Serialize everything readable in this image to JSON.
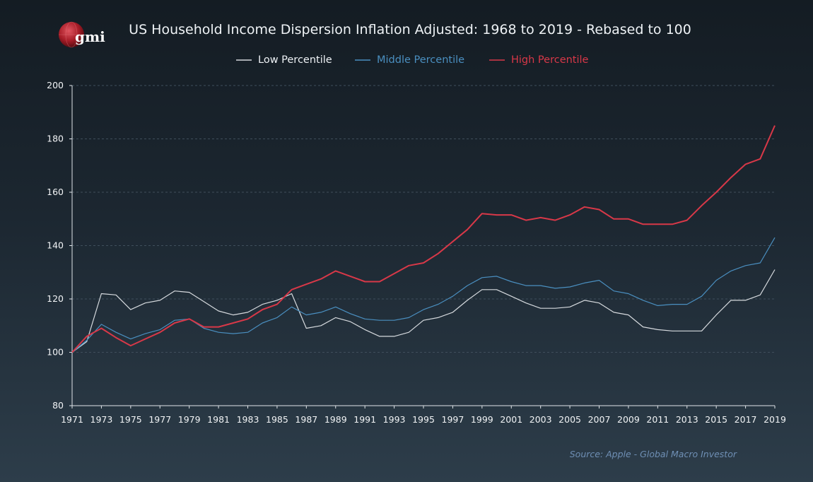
{
  "logo": {
    "text": "gmi"
  },
  "source_text": "Source: Apple - Global Macro Investor",
  "colors": {
    "low": "#d6dade",
    "middle": "#4a8fc0",
    "high": "#d83848"
  },
  "chart_data": {
    "type": "line",
    "title": "US Household Income Dispersion Inflation Adjusted: 1968 to 2019 - Rebased to 100",
    "xlabel": "",
    "ylabel": "",
    "ylim": [
      80,
      200
    ],
    "yticks": [
      80,
      100,
      120,
      140,
      160,
      180,
      200
    ],
    "xlim": [
      1971,
      2019
    ],
    "xticks": [
      1971,
      1973,
      1975,
      1977,
      1979,
      1981,
      1983,
      1985,
      1987,
      1989,
      1991,
      1993,
      1995,
      1997,
      1999,
      2001,
      2003,
      2005,
      2007,
      2009,
      2011,
      2013,
      2015,
      2017,
      2019
    ],
    "grid": true,
    "legend_position": "top",
    "x": [
      1971,
      1972,
      1973,
      1974,
      1975,
      1976,
      1977,
      1978,
      1979,
      1980,
      1981,
      1982,
      1983,
      1984,
      1985,
      1986,
      1987,
      1988,
      1989,
      1990,
      1991,
      1992,
      1993,
      1994,
      1995,
      1996,
      1997,
      1998,
      1999,
      2000,
      2001,
      2002,
      2003,
      2004,
      2005,
      2006,
      2007,
      2008,
      2009,
      2010,
      2011,
      2012,
      2013,
      2014,
      2015,
      2016,
      2017,
      2018,
      2019
    ],
    "series": [
      {
        "name": "Low Percentile",
        "color": "#d6dade",
        "values": [
          100,
          104,
          122,
          121.5,
          116,
          118.5,
          119.5,
          123,
          122.5,
          119,
          115.5,
          114,
          115,
          118,
          119.5,
          122,
          109,
          110,
          113,
          111.5,
          108.5,
          106,
          106,
          107.5,
          112,
          113,
          115,
          119.5,
          123.5,
          123.5,
          121,
          118.5,
          116.5,
          116.5,
          117,
          119.5,
          118.5,
          115,
          114,
          109.5,
          108.5,
          108,
          108,
          108,
          114,
          119.5,
          119.5,
          121.5,
          131
        ]
      },
      {
        "name": "Middle Percentile",
        "color": "#4a8fc0",
        "values": [
          100,
          104.5,
          110.5,
          107.5,
          105,
          107,
          108.5,
          112,
          112.5,
          109,
          107.5,
          107,
          107.5,
          111,
          113,
          117,
          114,
          115,
          117,
          114.5,
          112.5,
          112,
          112,
          113,
          116,
          118,
          121,
          125,
          128,
          128.5,
          126.5,
          125,
          125,
          124,
          124.5,
          126,
          127,
          123,
          122,
          119.5,
          117.5,
          118,
          118,
          121,
          127,
          130.5,
          132.5,
          133.5,
          143
        ]
      },
      {
        "name": "High Percentile",
        "color": "#d83848",
        "values": [
          100,
          106,
          109,
          105.5,
          102.5,
          105,
          107.5,
          111,
          112.5,
          109.5,
          109.5,
          111,
          112.5,
          116,
          118,
          123.5,
          125.5,
          127.5,
          130.5,
          128.5,
          126.5,
          126.5,
          129.5,
          132.5,
          133.5,
          137,
          141.5,
          146,
          152,
          151.5,
          151.5,
          149.5,
          150.5,
          149.5,
          151.5,
          154.5,
          153.5,
          150,
          150,
          148,
          148,
          148,
          149.5,
          155,
          160,
          165.5,
          170.5,
          172.5,
          185
        ]
      }
    ]
  }
}
